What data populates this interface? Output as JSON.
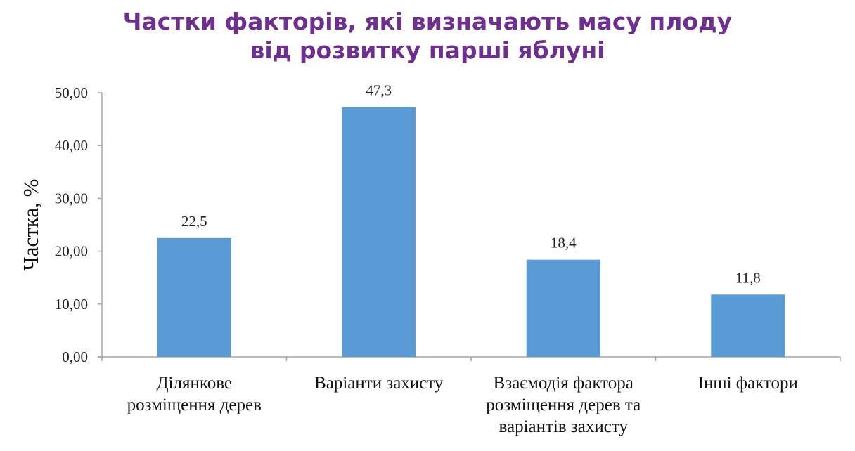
{
  "chart_data": {
    "type": "bar",
    "title": [
      "Частки факторів, які визначають масу плоду",
      "від розвитку парші яблуні"
    ],
    "ylabel": "Частка, %",
    "xlabel": "",
    "ylim": [
      0,
      50
    ],
    "yticks": [
      "0,00",
      "10,00",
      "20,00",
      "30,00",
      "40,00",
      "50,00"
    ],
    "categories": [
      [
        "Ділянкове",
        "розміщення дерев"
      ],
      [
        "Варіанти захисту"
      ],
      [
        "Взаємодія фактора",
        "розміщення  дерев та",
        "варіантів захисту"
      ],
      [
        "Інші фактори"
      ]
    ],
    "values": [
      22.5,
      47.3,
      18.4,
      11.8
    ],
    "data_labels": [
      "22,5",
      "47,3",
      "18,4",
      "11,8"
    ],
    "bar_color": "#5b9bd5",
    "title_color": "#6e2f91",
    "axis_color": "#a6a6a6",
    "grid": false,
    "legend": "none"
  }
}
